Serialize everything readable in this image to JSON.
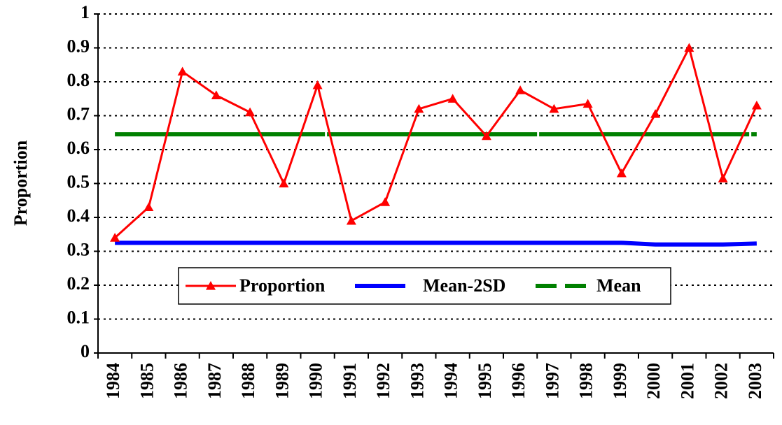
{
  "chart_data": {
    "type": "line",
    "y_label": "Proportion",
    "categories": [
      "1984",
      "1985",
      "1986",
      "1987",
      "1988",
      "1989",
      "1990",
      "1991",
      "1992",
      "1993",
      "1994",
      "1995",
      "1996",
      "1997",
      "1998",
      "1999",
      "2000",
      "2001",
      "2002",
      "2003"
    ],
    "series": [
      {
        "name": "Proportion",
        "color": "#ff0000",
        "marker": "triangle",
        "values": [
          0.34,
          0.43,
          0.83,
          0.76,
          0.71,
          0.5,
          0.79,
          0.39,
          0.445,
          0.72,
          0.75,
          0.64,
          0.775,
          0.72,
          0.735,
          0.53,
          0.705,
          0.9,
          0.515,
          0.73
        ]
      },
      {
        "name": "Mean-2SD",
        "color": "#0000ff",
        "values": [
          0.325,
          0.325,
          0.325,
          0.325,
          0.325,
          0.325,
          0.325,
          0.325,
          0.325,
          0.325,
          0.325,
          0.325,
          0.325,
          0.325,
          0.325,
          0.325,
          0.32,
          0.32,
          0.32,
          0.323
        ]
      },
      {
        "name": "Mean",
        "color": "#008000",
        "dashed": true,
        "values": [
          0.645,
          0.645,
          0.645,
          0.645,
          0.645,
          0.645,
          0.645,
          0.645,
          0.645,
          0.645,
          0.645,
          0.645,
          0.645,
          0.645,
          0.645,
          0.645,
          0.645,
          0.645,
          0.645,
          0.645
        ]
      }
    ],
    "ylim": [
      0,
      1
    ],
    "yticks": [
      0,
      0.1,
      0.2,
      0.3,
      0.4,
      0.5,
      0.6,
      0.7,
      0.8,
      0.9,
      1
    ],
    "grid": true
  }
}
